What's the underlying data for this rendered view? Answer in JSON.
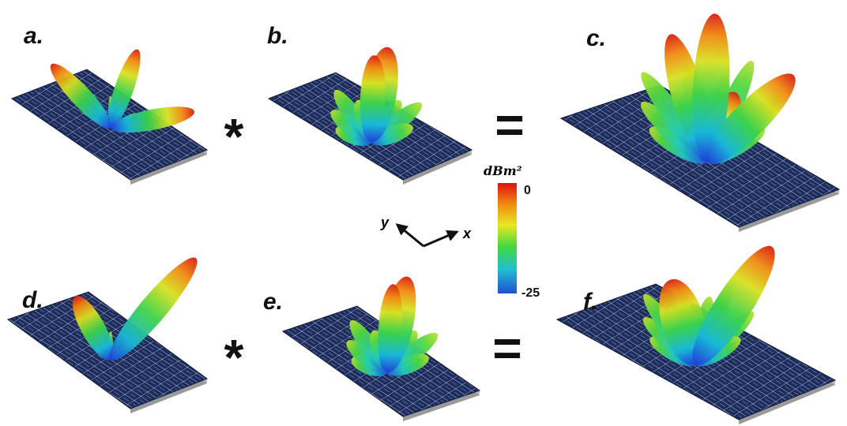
{
  "panels": [
    {
      "label": "a."
    },
    {
      "label": "b."
    },
    {
      "label": "c."
    },
    {
      "label": "d."
    },
    {
      "label": "e."
    },
    {
      "label": "f."
    }
  ],
  "operators": [
    "*",
    "=",
    "*",
    "="
  ],
  "colorbar": {
    "title": "dBm²",
    "ticks": [
      0,
      -25
    ]
  },
  "axes": {
    "y": "y",
    "x": "x"
  }
}
